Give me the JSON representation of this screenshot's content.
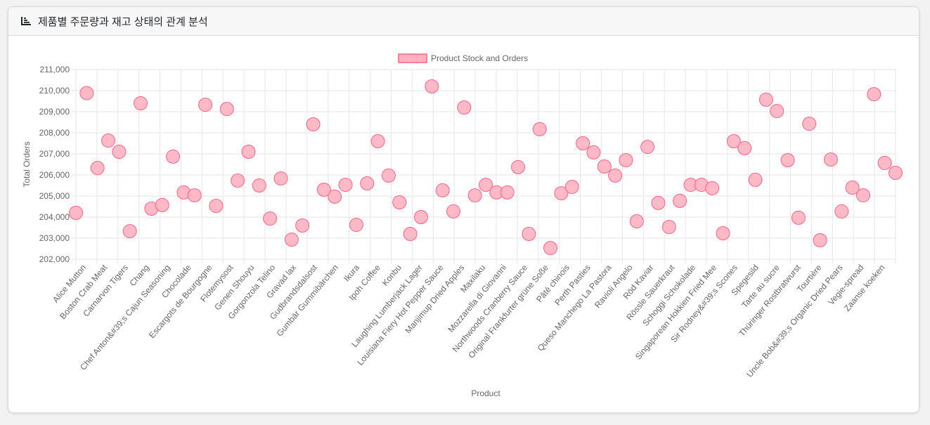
{
  "card": {
    "title": "제품별 주문량과 재고 상태의 관계 분석",
    "icon": "bar-chart-icon"
  },
  "chart_data": {
    "type": "scatter",
    "xlabel": "Product",
    "ylabel": "Total Orders",
    "ylim": [
      202000,
      211000
    ],
    "ytick_step": 1000,
    "ytick_labels": [
      "202,000",
      "203,000",
      "204,000",
      "205,000",
      "206,000",
      "207,000",
      "208,000",
      "209,000",
      "210,000",
      "211,000"
    ],
    "grid": true,
    "legend_position": "top",
    "colors": {
      "fill": "#ffb1c1",
      "stroke": "#ff6384"
    },
    "series": [
      {
        "name": "Product Stock and Orders"
      }
    ],
    "categories": [
      "Alice Mutton",
      "Boston Crab Meat",
      "Carnarvon Tigers",
      "Chang",
      "Chef Anton&#39;s Cajun Seasoning",
      "Chocolade",
      "Escargots de Bourgogne",
      "Flotemysost",
      "Genen Shouyu",
      "Gorgonzola Telino",
      "Gravad lax",
      "Gudbrandsdalsost",
      "Gumbär Gummibärchen",
      "Ikura",
      "Ipoh Coffee",
      "Konbu",
      "Laughing Lumberjack Lager",
      "Louisiana Fiery Hot Pepper Sauce",
      "Manjimup Dried Apples",
      "Maxilaku",
      "Mozzarella di Giovanni",
      "Northwoods Cranberry Sauce",
      "Original Frankfurter grüne Soße",
      "Pâté chinois",
      "Perth Pasties",
      "Queso Manchego La Pastora",
      "Ravioli Angelo",
      "Röd Kaviar",
      "Rössle Sauerkraut",
      "Schoggi Schokolade",
      "Singaporean Hokkien Fried Mee",
      "Sir Rodney&#39;s Scones",
      "Spegesild",
      "Tarte au sucre",
      "Thüringer Rostbratwurst",
      "Tourtière",
      "Uncle Bob&#39;s Organic Dried Pears",
      "Vegie-spread",
      "Zaanse koeken"
    ],
    "points": [
      {
        "x": "Alice Mutton",
        "y": 204200
      },
      {
        "x": "Alice Mutton",
        "y": 209880
      },
      {
        "x": "Boston Crab Meat",
        "y": 206330
      },
      {
        "x": "Boston Crab Meat",
        "y": 207630
      },
      {
        "x": "Carnarvon Tigers",
        "y": 207100
      },
      {
        "x": "Carnarvon Tigers",
        "y": 203330
      },
      {
        "x": "Chang",
        "y": 209400
      },
      {
        "x": "Chang",
        "y": 204400
      },
      {
        "x": "Chef Anton&#39;s Cajun Seasoning",
        "y": 204570
      },
      {
        "x": "Chef Anton&#39;s Cajun Seasoning",
        "y": 206870
      },
      {
        "x": "Chocolade",
        "y": 205170
      },
      {
        "x": "Chocolade",
        "y": 205030
      },
      {
        "x": "Escargots de Bourgogne",
        "y": 209330
      },
      {
        "x": "Escargots de Bourgogne",
        "y": 204530
      },
      {
        "x": "Flotemysost",
        "y": 209130
      },
      {
        "x": "Flotemysost",
        "y": 205730
      },
      {
        "x": "Genen Shouyu",
        "y": 207100
      },
      {
        "x": "Genen Shouyu",
        "y": 205500
      },
      {
        "x": "Gorgonzola Telino",
        "y": 203930
      },
      {
        "x": "Gorgonzola Telino",
        "y": 205830
      },
      {
        "x": "Gravad lax",
        "y": 202930
      },
      {
        "x": "Gravad lax",
        "y": 203600
      },
      {
        "x": "Gudbrandsdalsost",
        "y": 208400
      },
      {
        "x": "Gudbrandsdalsost",
        "y": 205300
      },
      {
        "x": "Gumbär Gummibärchen",
        "y": 204970
      },
      {
        "x": "Gumbär Gummibärchen",
        "y": 205530
      },
      {
        "x": "Ikura",
        "y": 203630
      },
      {
        "x": "Ikura",
        "y": 205600
      },
      {
        "x": "Ipoh Coffee",
        "y": 207600
      },
      {
        "x": "Ipoh Coffee",
        "y": 205970
      },
      {
        "x": "Konbu",
        "y": 204700
      },
      {
        "x": "Konbu",
        "y": 203200
      },
      {
        "x": "Laughing Lumberjack Lager",
        "y": 204000
      },
      {
        "x": "Laughing Lumberjack Lager",
        "y": 210200
      },
      {
        "x": "Louisiana Fiery Hot Pepper Sauce",
        "y": 205270
      },
      {
        "x": "Louisiana Fiery Hot Pepper Sauce",
        "y": 204270
      },
      {
        "x": "Manjimup Dried Apples",
        "y": 209200
      },
      {
        "x": "Manjimup Dried Apples",
        "y": 205030
      },
      {
        "x": "Maxilaku",
        "y": 205530
      },
      {
        "x": "Maxilaku",
        "y": 205170
      },
      {
        "x": "Mozzarella di Giovanni",
        "y": 205170
      },
      {
        "x": "Mozzarella di Giovanni",
        "y": 206370
      },
      {
        "x": "Northwoods Cranberry Sauce",
        "y": 203200
      },
      {
        "x": "Northwoods Cranberry Sauce",
        "y": 208170
      },
      {
        "x": "Original Frankfurter grüne Soße",
        "y": 202530
      },
      {
        "x": "Original Frankfurter grüne Soße",
        "y": 205130
      },
      {
        "x": "Pâté chinois",
        "y": 205430
      },
      {
        "x": "Pâté chinois",
        "y": 207500
      },
      {
        "x": "Perth Pasties",
        "y": 207070
      },
      {
        "x": "Perth Pasties",
        "y": 206400
      },
      {
        "x": "Queso Manchego La Pastora",
        "y": 205970
      },
      {
        "x": "Queso Manchego La Pastora",
        "y": 206700
      },
      {
        "x": "Ravioli Angelo",
        "y": 203800
      },
      {
        "x": "Ravioli Angelo",
        "y": 207330
      },
      {
        "x": "Röd Kaviar",
        "y": 204670
      },
      {
        "x": "Röd Kaviar",
        "y": 203530
      },
      {
        "x": "Rössle Sauerkraut",
        "y": 204770
      },
      {
        "x": "Rössle Sauerkraut",
        "y": 205530
      },
      {
        "x": "Schoggi Schokolade",
        "y": 205530
      },
      {
        "x": "Schoggi Schokolade",
        "y": 205370
      },
      {
        "x": "Singaporean Hokkien Fried Mee",
        "y": 203230
      },
      {
        "x": "Singaporean Hokkien Fried Mee",
        "y": 207600
      },
      {
        "x": "Sir Rodney&#39;s Scones",
        "y": 207270
      },
      {
        "x": "Sir Rodney&#39;s Scones",
        "y": 205770
      },
      {
        "x": "Spegesild",
        "y": 209570
      },
      {
        "x": "Spegesild",
        "y": 209030
      },
      {
        "x": "Tarte au sucre",
        "y": 206700
      },
      {
        "x": "Tarte au sucre",
        "y": 203970
      },
      {
        "x": "Thüringer Rostbratwurst",
        "y": 208430
      },
      {
        "x": "Thüringer Rostbratwurst",
        "y": 202900
      },
      {
        "x": "Tourtière",
        "y": 206730
      },
      {
        "x": "Tourtière",
        "y": 204270
      },
      {
        "x": "Uncle Bob&#39;s Organic Dried Pears",
        "y": 205400
      },
      {
        "x": "Uncle Bob&#39;s Organic Dried Pears",
        "y": 205030
      },
      {
        "x": "Vegie-spread",
        "y": 209830
      },
      {
        "x": "Vegie-spread",
        "y": 206570
      },
      {
        "x": "Zaanse koeken",
        "y": 206100
      }
    ]
  }
}
